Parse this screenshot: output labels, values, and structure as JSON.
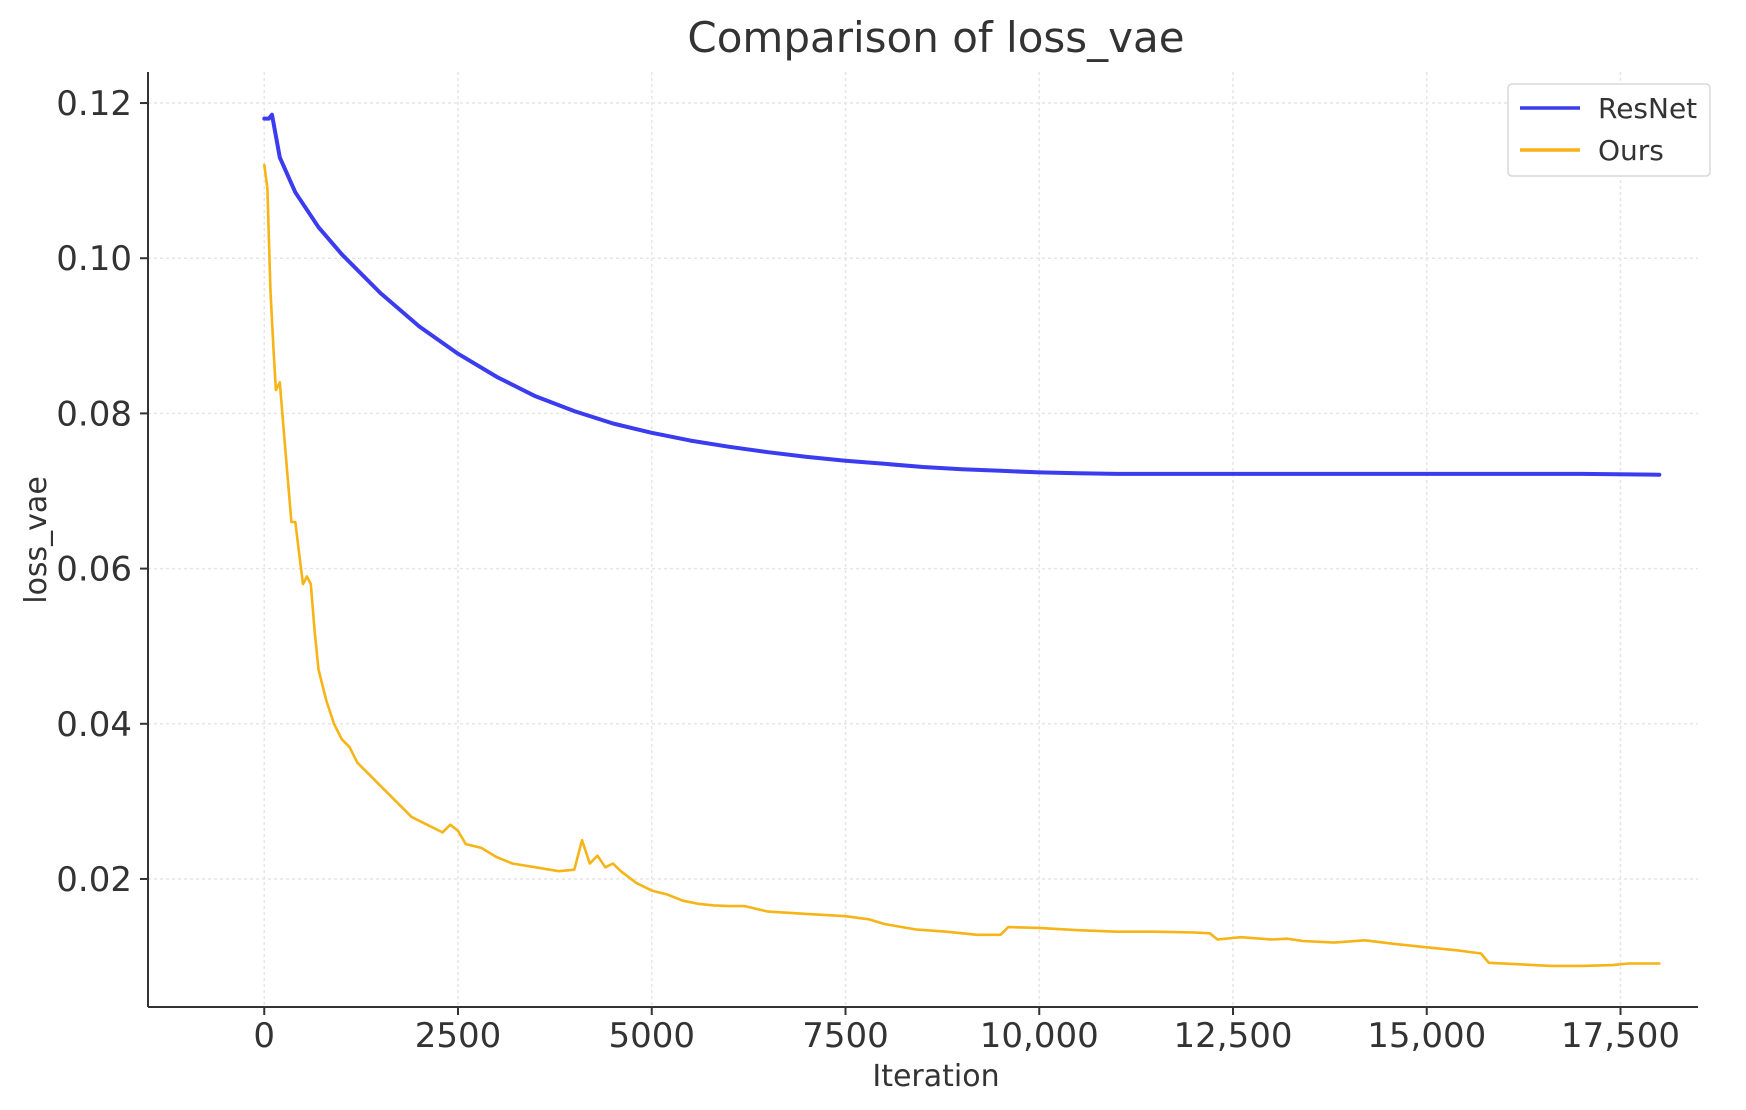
{
  "chart_data": {
    "type": "line",
    "title": "Comparison of loss_vae",
    "xlabel": "Iteration",
    "ylabel": "loss_vae",
    "xlim": [
      -1500,
      18500
    ],
    "ylim": [
      0.0035,
      0.124
    ],
    "xticks": [
      0,
      2500,
      5000,
      7500,
      10000,
      12500,
      15000,
      17500
    ],
    "xtick_labels": [
      "0",
      "2500",
      "5000",
      "7500",
      "10,000",
      "12,500",
      "15,000",
      "17,500"
    ],
    "yticks": [
      0.02,
      0.04,
      0.06,
      0.08,
      0.1,
      0.12
    ],
    "ytick_labels": [
      "0.02",
      "0.04",
      "0.06",
      "0.08",
      "0.10",
      "0.12"
    ],
    "grid": true,
    "legend_position": "top-right",
    "series": [
      {
        "name": "ResNet",
        "color": "#3b3bf0",
        "x": [
          0,
          60,
          100,
          200,
          400,
          700,
          1000,
          1500,
          2000,
          2500,
          3000,
          3500,
          4000,
          4500,
          5000,
          5500,
          6000,
          6500,
          7000,
          7500,
          8000,
          8500,
          9000,
          9500,
          10000,
          10500,
          11000,
          12000,
          13000,
          14000,
          15000,
          16000,
          17000,
          18000
        ],
        "y": [
          0.118,
          0.118,
          0.1185,
          0.113,
          0.1085,
          0.104,
          0.1005,
          0.0955,
          0.0912,
          0.0877,
          0.0847,
          0.0822,
          0.0803,
          0.0787,
          0.0775,
          0.0765,
          0.0757,
          0.075,
          0.0744,
          0.0739,
          0.0735,
          0.0731,
          0.0728,
          0.0726,
          0.0724,
          0.0723,
          0.0722,
          0.0722,
          0.0722,
          0.0722,
          0.0722,
          0.0722,
          0.0722,
          0.0721
        ]
      },
      {
        "name": "Ours",
        "color": "#f6b417",
        "x": [
          0,
          40,
          80,
          120,
          150,
          200,
          250,
          300,
          350,
          400,
          450,
          500,
          550,
          600,
          650,
          700,
          800,
          900,
          1000,
          1100,
          1200,
          1300,
          1400,
          1500,
          1600,
          1700,
          1800,
          1900,
          2000,
          2100,
          2200,
          2300,
          2400,
          2500,
          2600,
          2800,
          3000,
          3200,
          3500,
          3800,
          4000,
          4100,
          4200,
          4300,
          4400,
          4500,
          4600,
          4800,
          5000,
          5200,
          5400,
          5600,
          5800,
          6000,
          6200,
          6500,
          7000,
          7500,
          7800,
          8000,
          8400,
          8800,
          9200,
          9500,
          9600,
          10000,
          10500,
          11000,
          11500,
          12000,
          12200,
          12300,
          12600,
          13000,
          13200,
          13400,
          13800,
          14200,
          14600,
          15000,
          15400,
          15700,
          15800,
          16200,
          16600,
          17000,
          17400,
          17600,
          18000
        ],
        "y": [
          0.112,
          0.109,
          0.096,
          0.088,
          0.083,
          0.084,
          0.078,
          0.072,
          0.066,
          0.066,
          0.062,
          0.058,
          0.059,
          0.058,
          0.052,
          0.047,
          0.043,
          0.04,
          0.038,
          0.037,
          0.035,
          0.034,
          0.033,
          0.032,
          0.031,
          0.03,
          0.029,
          0.028,
          0.0275,
          0.027,
          0.0265,
          0.026,
          0.027,
          0.0262,
          0.0245,
          0.024,
          0.0228,
          0.022,
          0.0215,
          0.021,
          0.0212,
          0.025,
          0.022,
          0.023,
          0.0215,
          0.022,
          0.021,
          0.0195,
          0.0185,
          0.018,
          0.0172,
          0.0168,
          0.0166,
          0.0165,
          0.0165,
          0.0158,
          0.0155,
          0.0152,
          0.0148,
          0.0142,
          0.0135,
          0.0132,
          0.0128,
          0.0128,
          0.0138,
          0.0137,
          0.0134,
          0.0132,
          0.0132,
          0.0131,
          0.013,
          0.0122,
          0.0125,
          0.0122,
          0.0123,
          0.012,
          0.0118,
          0.0121,
          0.0116,
          0.0112,
          0.0108,
          0.0104,
          0.0092,
          0.009,
          0.0088,
          0.0088,
          0.0089,
          0.0091,
          0.0091
        ]
      }
    ]
  }
}
